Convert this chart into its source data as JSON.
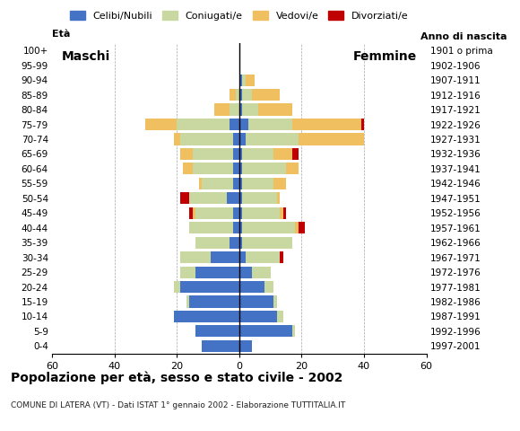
{
  "age_groups": [
    "0-4",
    "5-9",
    "10-14",
    "15-19",
    "20-24",
    "25-29",
    "30-34",
    "35-39",
    "40-44",
    "45-49",
    "50-54",
    "55-59",
    "60-64",
    "65-69",
    "70-74",
    "75-79",
    "80-84",
    "85-89",
    "90-94",
    "95-99",
    "100+"
  ],
  "birth_years": [
    "1997-2001",
    "1992-1996",
    "1987-1991",
    "1982-1986",
    "1977-1981",
    "1972-1976",
    "1967-1971",
    "1962-1966",
    "1957-1961",
    "1952-1956",
    "1947-1951",
    "1942-1946",
    "1937-1941",
    "1932-1936",
    "1927-1931",
    "1922-1926",
    "1917-1921",
    "1912-1916",
    "1907-1911",
    "1902-1906",
    "1901 o prima"
  ],
  "males": {
    "celibi": [
      12,
      14,
      21,
      16,
      19,
      14,
      9,
      3,
      2,
      2,
      4,
      2,
      2,
      2,
      2,
      3,
      0,
      0,
      0,
      0,
      0
    ],
    "coniugati": [
      0,
      0,
      0,
      1,
      2,
      5,
      10,
      11,
      14,
      12,
      12,
      10,
      13,
      13,
      17,
      17,
      3,
      1,
      0,
      0,
      0
    ],
    "vedovi": [
      0,
      0,
      0,
      0,
      0,
      0,
      0,
      0,
      0,
      1,
      0,
      1,
      3,
      4,
      2,
      10,
      5,
      2,
      0,
      0,
      0
    ],
    "divorziati": [
      0,
      0,
      0,
      0,
      0,
      0,
      0,
      0,
      0,
      1,
      3,
      0,
      0,
      0,
      0,
      0,
      0,
      0,
      0,
      0,
      0
    ]
  },
  "females": {
    "nubili": [
      4,
      17,
      12,
      11,
      8,
      4,
      2,
      1,
      1,
      1,
      1,
      1,
      1,
      1,
      2,
      3,
      1,
      1,
      1,
      0,
      0
    ],
    "coniugate": [
      0,
      1,
      2,
      1,
      3,
      6,
      11,
      16,
      17,
      12,
      11,
      10,
      14,
      10,
      17,
      14,
      5,
      3,
      1,
      0,
      0
    ],
    "vedove": [
      0,
      0,
      0,
      0,
      0,
      0,
      0,
      0,
      1,
      1,
      1,
      4,
      4,
      6,
      21,
      22,
      11,
      9,
      3,
      0,
      0
    ],
    "divorziate": [
      0,
      0,
      0,
      0,
      0,
      0,
      1,
      0,
      2,
      1,
      0,
      0,
      0,
      2,
      0,
      1,
      0,
      0,
      0,
      0,
      0
    ]
  },
  "colors": {
    "celibi_nubili": "#4472c4",
    "coniugati": "#c8d8a0",
    "vedovi": "#f0c060",
    "divorziati": "#c00000"
  },
  "xlim": 60,
  "title": "Popolazione per età, sesso e stato civile - 2002",
  "subtitle": "COMUNE DI LATERA (VT) - Dati ISTAT 1° gennaio 2002 - Elaborazione TUTTITALIA.IT",
  "ylabel_left": "Età",
  "ylabel_right": "Anno di nascita",
  "label_maschi": "Maschi",
  "label_femmine": "Femmine",
  "legend_labels": [
    "Celibi/Nubili",
    "Coniugati/e",
    "Vedovi/e",
    "Divorziati/e"
  ]
}
